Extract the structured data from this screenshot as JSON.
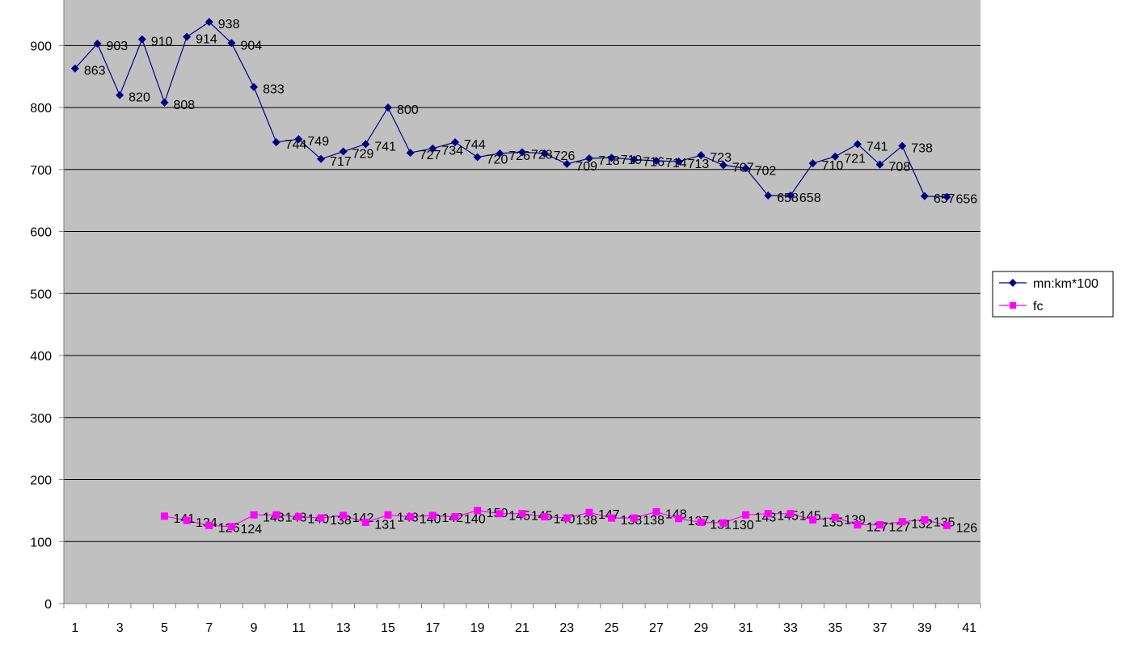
{
  "chart_data": {
    "type": "line",
    "title": "",
    "xlabel": "",
    "ylabel": "",
    "x": [
      1,
      2,
      3,
      4,
      5,
      6,
      7,
      8,
      9,
      10,
      11,
      12,
      13,
      14,
      15,
      16,
      17,
      18,
      19,
      20,
      21,
      22,
      23,
      24,
      25,
      26,
      27,
      28,
      29,
      30,
      31,
      32,
      33,
      34,
      35,
      36,
      37,
      38,
      39,
      40,
      41
    ],
    "x_tick_labels": [
      "1",
      "3",
      "5",
      "7",
      "9",
      "11",
      "13",
      "15",
      "17",
      "19",
      "21",
      "23",
      "25",
      "27",
      "29",
      "31",
      "33",
      "35",
      "37",
      "39",
      "41"
    ],
    "ylim": [
      0,
      900
    ],
    "y_tick_labels": [
      "0",
      "100",
      "200",
      "300",
      "400",
      "500",
      "600",
      "700",
      "800",
      "900"
    ],
    "grid": "horizontal",
    "legend_position": "right",
    "series": [
      {
        "name": "mn:km*100",
        "color": "#000080",
        "marker": "diamond",
        "x": [
          1,
          2,
          3,
          4,
          5,
          6,
          7,
          8,
          9,
          10,
          11,
          12,
          13,
          14,
          15,
          16,
          17,
          18,
          19,
          20,
          21,
          22,
          23,
          24,
          25,
          26,
          27,
          28,
          29,
          30,
          31,
          32,
          33,
          34,
          35,
          36,
          37,
          38,
          39,
          40
        ],
        "values": [
          863,
          903,
          820,
          910,
          808,
          914,
          938,
          904,
          833,
          744,
          749,
          717,
          729,
          741,
          800,
          727,
          734,
          744,
          720,
          726,
          728,
          726,
          709,
          718,
          719,
          716,
          714,
          713,
          723,
          707,
          702,
          658,
          658,
          710,
          721,
          741,
          708,
          738,
          657,
          656
        ]
      },
      {
        "name": "fc",
        "color": "#ff00ff",
        "marker": "square",
        "x": [
          5,
          6,
          7,
          8,
          9,
          10,
          11,
          12,
          13,
          14,
          15,
          16,
          17,
          18,
          19,
          20,
          21,
          22,
          23,
          24,
          25,
          26,
          27,
          28,
          29,
          30,
          31,
          32,
          33,
          34,
          35,
          36,
          37,
          38,
          39,
          40
        ],
        "values": [
          141,
          134,
          126,
          124,
          143,
          143,
          140,
          138,
          142,
          131,
          143,
          140,
          142,
          140,
          150,
          145,
          145,
          140,
          138,
          147,
          138,
          138,
          148,
          137,
          131,
          130,
          143,
          145,
          145,
          135,
          139,
          127,
          127,
          132,
          135,
          126
        ]
      }
    ]
  }
}
